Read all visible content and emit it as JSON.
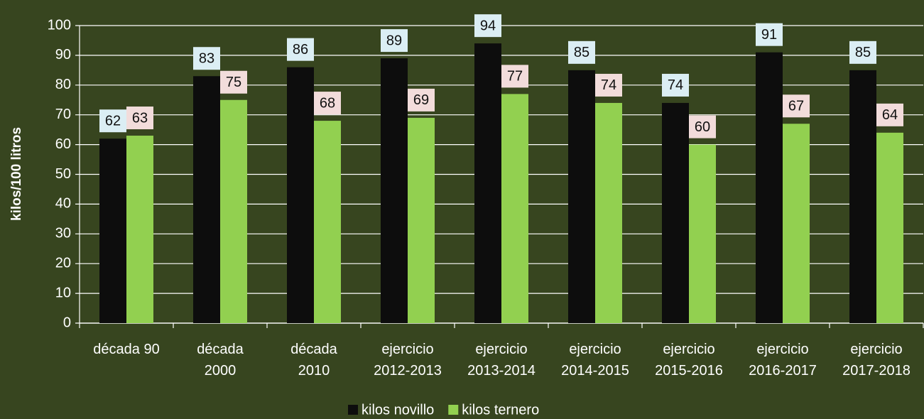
{
  "chart_data": {
    "type": "bar",
    "y_label": "kilos/100 litros",
    "categories": [
      "década 90",
      "década\n2000",
      "década\n2010",
      "ejercicio\n2012-2013",
      "ejercicio\n2013-2014",
      "ejercicio\n2014-2015",
      "ejercicio\n2015-2016",
      "ejercicio\n2016-2017",
      "ejercicio\n2017-2018"
    ],
    "series": [
      {
        "name": "kilos novillo",
        "color": "#0d0d0d",
        "label_bg": "#dbeef4",
        "values": [
          62,
          83,
          86,
          89,
          94,
          85,
          74,
          91,
          85
        ]
      },
      {
        "name": "kilos ternero",
        "color": "#92d050",
        "label_bg": "#f2dcdb",
        "values": [
          63,
          75,
          68,
          69,
          77,
          74,
          60,
          67,
          64
        ]
      }
    ],
    "ylim": [
      0,
      100
    ],
    "yticks": [
      0,
      10,
      20,
      30,
      40,
      50,
      60,
      70,
      80,
      90,
      100
    ],
    "grid": true,
    "legend": "bottom"
  }
}
